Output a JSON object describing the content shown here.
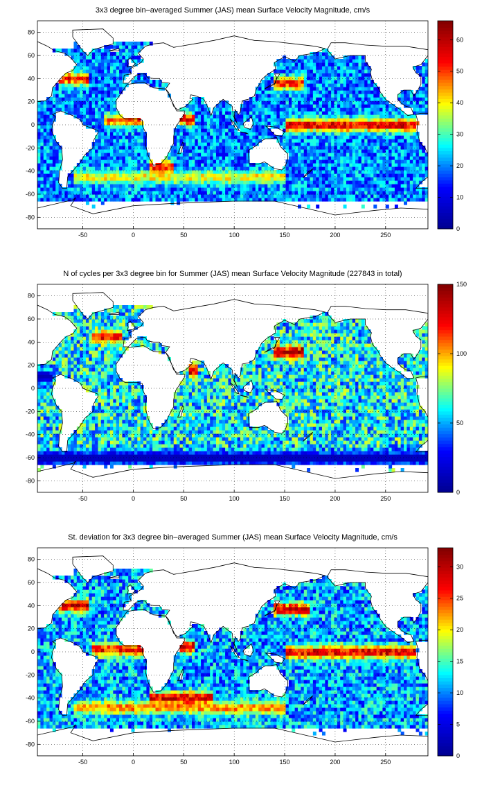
{
  "figure": {
    "colormap": "jet",
    "colormap_stops": [
      "#00008f",
      "#0000ff",
      "#00ffff",
      "#ffff00",
      "#ff0000",
      "#800000"
    ],
    "land_color": "#ffffff",
    "coastline_color": "#000000",
    "grid": "dotted"
  },
  "chart_data": [
    {
      "type": "heatmap",
      "title": "3x3 degree bin–averaged Summer (JAS) mean Surface Velocity Magnitude, cm/s",
      "xlabel": "",
      "ylabel": "",
      "xlim": [
        -95,
        292
      ],
      "ylim": [
        -90,
        90
      ],
      "xticks": [
        -50,
        0,
        50,
        100,
        150,
        200,
        250
      ],
      "yticks": [
        -80,
        -60,
        -40,
        -20,
        0,
        20,
        40,
        60,
        80
      ],
      "cbar_ticks": [
        0,
        10,
        20,
        30,
        40,
        50,
        60
      ],
      "clim": [
        0,
        66
      ],
      "bin_size_deg": 3,
      "typical_value": 20,
      "bands": [
        {
          "lat": 0,
          "lon": [
            150,
            290
          ],
          "value": 60
        },
        {
          "lat": 4,
          "lon": [
            -30,
            10
          ],
          "value": 50
        },
        {
          "lat": 36,
          "lon": [
            140,
            170
          ],
          "value": 55
        },
        {
          "lat": 40,
          "lon": [
            -75,
            -45
          ],
          "value": 55
        },
        {
          "lat": -45,
          "lon": [
            -60,
            150
          ],
          "value": 42
        },
        {
          "lat": 5,
          "lon": [
            45,
            60
          ],
          "value": 58
        },
        {
          "lat": -36,
          "lon": [
            15,
            40
          ],
          "value": 55
        }
      ]
    },
    {
      "type": "heatmap",
      "title": "N of cycles per 3x3 degree bin for Summer (JAS) mean Surface Velocity Magnitude (227843 in total)",
      "xlabel": "",
      "ylabel": "",
      "xlim": [
        -95,
        292
      ],
      "ylim": [
        -90,
        90
      ],
      "xticks": [
        -50,
        0,
        50,
        100,
        150,
        200,
        250
      ],
      "yticks": [
        -80,
        -60,
        -40,
        -20,
        0,
        20,
        40,
        60,
        80
      ],
      "cbar_ticks": [
        0,
        50,
        100,
        150
      ],
      "clim": [
        0,
        150
      ],
      "total": 227843,
      "bin_size_deg": 3,
      "typical_value": 60,
      "bands": [
        {
          "lat": 32,
          "lon": [
            140,
            170
          ],
          "value": 145
        },
        {
          "lat": 45,
          "lon": [
            -40,
            -10
          ],
          "value": 130
        },
        {
          "lat": 15,
          "lon": [
            55,
            65
          ],
          "value": 140
        },
        {
          "lat": -60,
          "lon": [
            -95,
            292
          ],
          "value": 10
        },
        {
          "lat": 10,
          "lon": [
            -95,
            -80
          ],
          "value": 10
        }
      ]
    },
    {
      "type": "heatmap",
      "title": "St. deviation for 3x3 degree bin–averaged Summer (JAS) mean Surface Velocity Magnitude, cm/s",
      "xlabel": "",
      "ylabel": "",
      "xlim": [
        -95,
        292
      ],
      "ylim": [
        -90,
        90
      ],
      "xticks": [
        -50,
        0,
        50,
        100,
        150,
        200,
        250
      ],
      "yticks": [
        -80,
        -60,
        -40,
        -20,
        0,
        20,
        40,
        60,
        80
      ],
      "cbar_ticks": [
        0,
        5,
        10,
        15,
        20,
        25,
        30
      ],
      "clim": [
        0,
        33
      ],
      "bin_size_deg": 3,
      "typical_value": 11,
      "bands": [
        {
          "lat": 0,
          "lon": [
            150,
            280
          ],
          "value": 30
        },
        {
          "lat": 2,
          "lon": [
            -40,
            10
          ],
          "value": 28
        },
        {
          "lat": 37,
          "lon": [
            140,
            175
          ],
          "value": 30
        },
        {
          "lat": 40,
          "lon": [
            -75,
            -45
          ],
          "value": 30
        },
        {
          "lat": -40,
          "lon": [
            15,
            80
          ],
          "value": 31
        },
        {
          "lat": -48,
          "lon": [
            -60,
            150
          ],
          "value": 24
        },
        {
          "lat": 5,
          "lon": [
            45,
            60
          ],
          "value": 32
        }
      ]
    }
  ]
}
